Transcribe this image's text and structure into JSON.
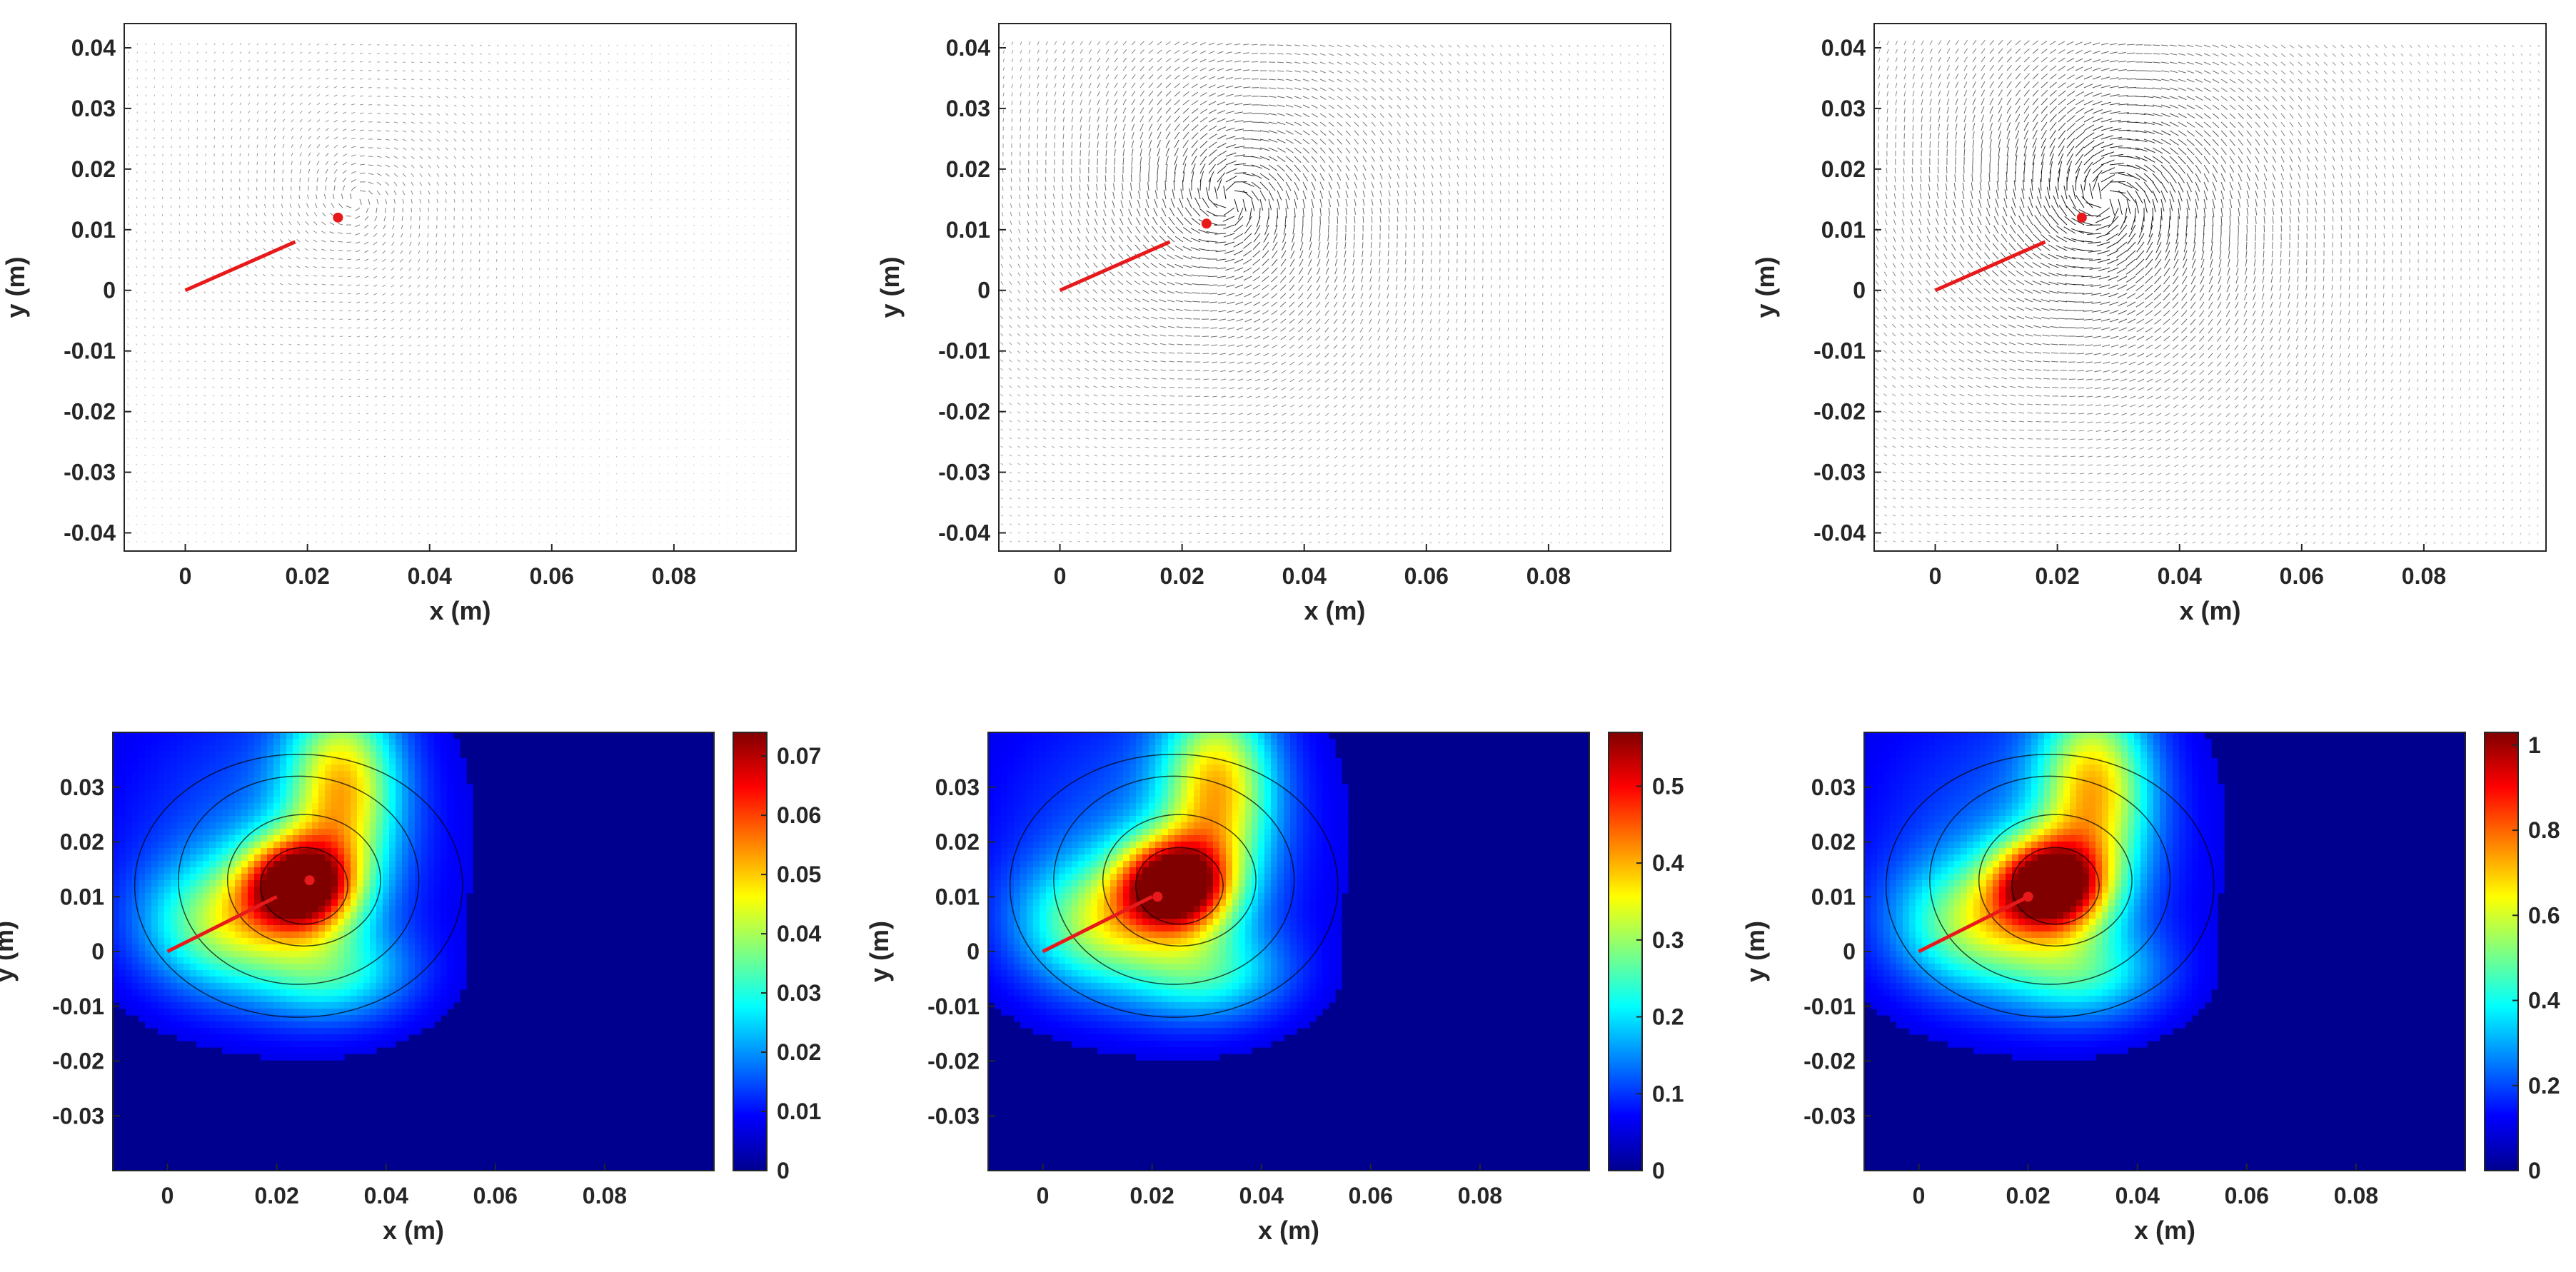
{
  "colors": {
    "accent_red": "#e8191a",
    "arrow": "#000000",
    "contour_line": "#000000",
    "colormap": "jet"
  },
  "chart_data": [
    {
      "type": "quiver",
      "xlabel": "x (m)",
      "ylabel": "y (m)",
      "xlim": [
        -0.01,
        0.1
      ],
      "ylim": [
        -0.043,
        0.044
      ],
      "xticks": [
        "0",
        "0.02",
        "0.04",
        "0.06",
        "0.08"
      ],
      "yticks": [
        "0.04",
        "0.03",
        "0.02",
        "0.01",
        "0",
        "-0.01",
        "-0.02",
        "-0.03",
        "-0.04"
      ],
      "crack_line": {
        "x": [
          0,
          0.018
        ],
        "y": [
          0,
          0.008
        ]
      },
      "tip_point": {
        "x": 0.025,
        "y": 0.012
      },
      "intensity": 0.35
    },
    {
      "type": "quiver",
      "xlabel": "x (m)",
      "ylabel": "y (m)",
      "xlim": [
        -0.01,
        0.1
      ],
      "ylim": [
        -0.043,
        0.044
      ],
      "xticks": [
        "0",
        "0.02",
        "0.04",
        "0.06",
        "0.08"
      ],
      "yticks": [
        "0.04",
        "0.03",
        "0.02",
        "0.01",
        "0",
        "-0.01",
        "-0.02",
        "-0.03",
        "-0.04"
      ],
      "crack_line": {
        "x": [
          0,
          0.018
        ],
        "y": [
          0,
          0.008
        ]
      },
      "tip_point": {
        "x": 0.024,
        "y": 0.011
      },
      "intensity": 0.8
    },
    {
      "type": "quiver",
      "xlabel": "x (m)",
      "ylabel": "y (m)",
      "xlim": [
        -0.01,
        0.1
      ],
      "ylim": [
        -0.043,
        0.044
      ],
      "xticks": [
        "0",
        "0.02",
        "0.04",
        "0.06",
        "0.08"
      ],
      "yticks": [
        "0.04",
        "0.03",
        "0.02",
        "0.01",
        "0",
        "-0.01",
        "-0.02",
        "-0.03",
        "-0.04"
      ],
      "crack_line": {
        "x": [
          0,
          0.018
        ],
        "y": [
          0,
          0.008
        ]
      },
      "tip_point": {
        "x": 0.024,
        "y": 0.012
      },
      "intensity": 1.0
    },
    {
      "type": "heatmap",
      "xlabel": "x (m)",
      "ylabel": "y (m)",
      "xlim": [
        -0.01,
        0.1
      ],
      "ylim": [
        -0.04,
        0.04
      ],
      "xticks": [
        "0",
        "0.02",
        "0.04",
        "0.06",
        "0.08"
      ],
      "yticks": [
        "0.03",
        "0.02",
        "0.01",
        "0",
        "-0.01",
        "-0.02",
        "-0.03"
      ],
      "crack_line": {
        "x": [
          0,
          0.02
        ],
        "y": [
          0,
          0.01
        ]
      },
      "tip_point": {
        "x": 0.026,
        "y": 0.013
      },
      "colorbar": {
        "min": 0,
        "max": 0.074,
        "ticks": [
          "0.07",
          "0.06",
          "0.05",
          "0.04",
          "0.03",
          "0.02",
          "0.01",
          "0"
        ]
      }
    },
    {
      "type": "heatmap",
      "xlabel": "x (m)",
      "ylabel": "y (m)",
      "xlim": [
        -0.01,
        0.1
      ],
      "ylim": [
        -0.04,
        0.04
      ],
      "xticks": [
        "0",
        "0.02",
        "0.04",
        "0.06",
        "0.08"
      ],
      "yticks": [
        "0.03",
        "0.02",
        "0.01",
        "0",
        "-0.01",
        "-0.02",
        "-0.03"
      ],
      "crack_line": {
        "x": [
          0,
          0.02
        ],
        "y": [
          0,
          0.01
        ]
      },
      "tip_point": {
        "x": 0.021,
        "y": 0.01
      },
      "colorbar": {
        "min": 0,
        "max": 0.57,
        "ticks": [
          "0.5",
          "0.4",
          "0.3",
          "0.2",
          "0.1",
          "0"
        ]
      }
    },
    {
      "type": "heatmap",
      "xlabel": "x (m)",
      "ylabel": "y (m)",
      "xlim": [
        -0.01,
        0.1
      ],
      "ylim": [
        -0.04,
        0.04
      ],
      "xticks": [
        "0",
        "0.02",
        "0.04",
        "0.06",
        "0.08"
      ],
      "yticks": [
        "0.03",
        "0.02",
        "0.01",
        "0",
        "-0.01",
        "-0.02",
        "-0.03"
      ],
      "crack_line": {
        "x": [
          0,
          0.02
        ],
        "y": [
          0,
          0.01
        ]
      },
      "tip_point": {
        "x": 0.02,
        "y": 0.01
      },
      "colorbar": {
        "min": 0,
        "max": 1.03,
        "ticks": [
          "1",
          "0.8",
          "0.6",
          "0.4",
          "0.2",
          "0"
        ]
      }
    }
  ]
}
